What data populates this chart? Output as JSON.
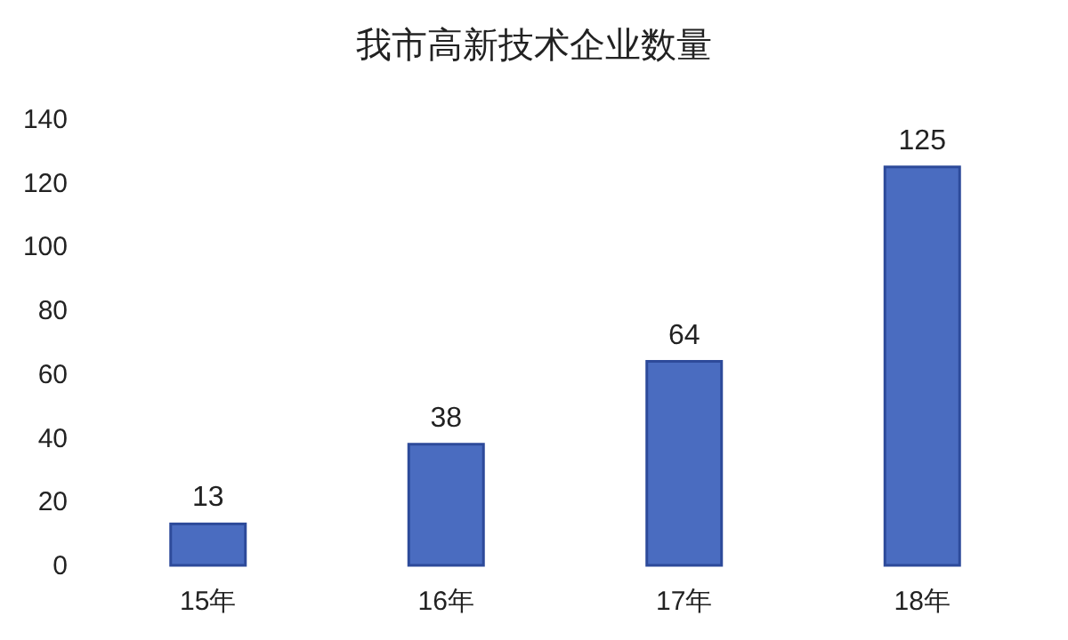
{
  "chart_data": {
    "type": "bar",
    "title": "我市高新技术企业数量",
    "categories": [
      "15年",
      "16年",
      "17年",
      "18年"
    ],
    "values": [
      13,
      38,
      64,
      125
    ],
    "color": "#4a6cc0",
    "ylim": [
      0,
      140
    ],
    "yticks": [
      0,
      20,
      40,
      60,
      80,
      100,
      120,
      140
    ],
    "data_labels": true
  }
}
